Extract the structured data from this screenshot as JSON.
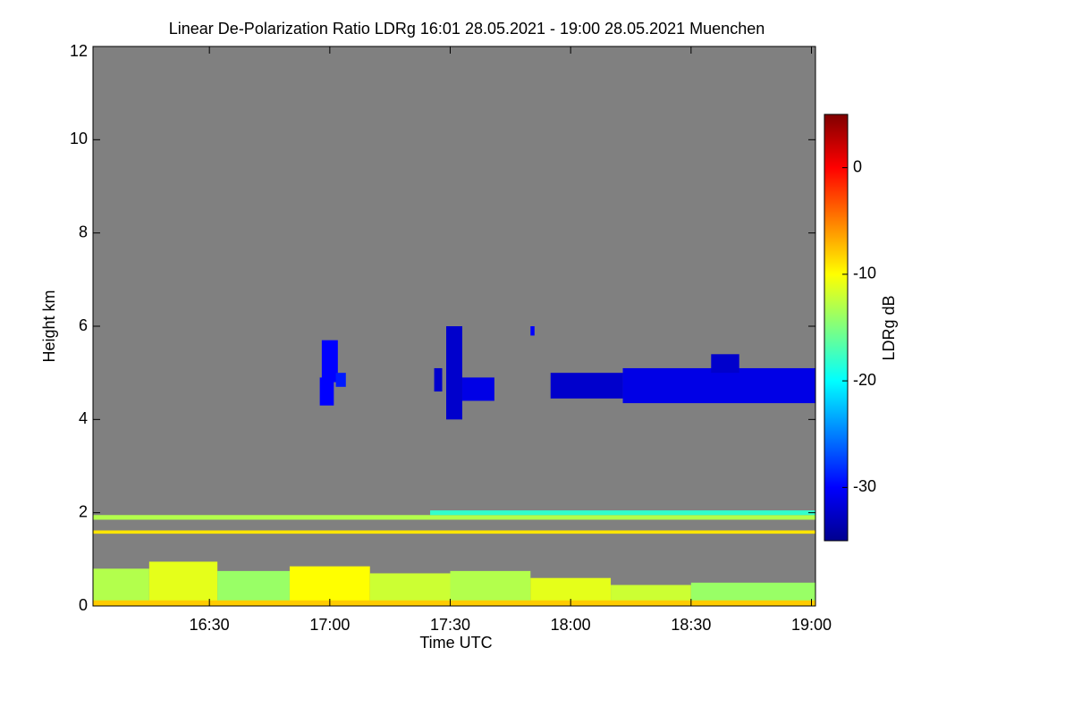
{
  "chart_data": {
    "type": "heatmap",
    "title": "Linear De-Polarization Ratio LDRg   16:01 28.05.2021 - 19:00 28.05.2021 Muenchen",
    "x_label": "Time UTC",
    "y_label": "Height km",
    "colorbar_label": "LDRg dB",
    "xlim": [
      961,
      1141
    ],
    "xticks": [
      {
        "value": 990,
        "label": "16:30"
      },
      {
        "value": 1020,
        "label": "17:00"
      },
      {
        "value": 1050,
        "label": "17:30"
      },
      {
        "value": 1080,
        "label": "18:00"
      },
      {
        "value": 1110,
        "label": "18:30"
      },
      {
        "value": 1140,
        "label": "19:00"
      }
    ],
    "ylim": [
      0,
      12
    ],
    "yticks": [
      0,
      2,
      4,
      6,
      8,
      10,
      12
    ],
    "clim": [
      -35,
      5
    ],
    "cticks": [
      0,
      -10,
      -20,
      -30
    ],
    "background": "#808080",
    "cells": [
      {
        "t": [
          961,
          975
        ],
        "h": [
          0,
          0.8
        ],
        "v": -13
      },
      {
        "t": [
          975,
          992
        ],
        "h": [
          0,
          0.95
        ],
        "v": -11
      },
      {
        "t": [
          992,
          1010
        ],
        "h": [
          0,
          0.75
        ],
        "v": -14
      },
      {
        "t": [
          1010,
          1030
        ],
        "h": [
          0,
          0.85
        ],
        "v": -10
      },
      {
        "t": [
          1030,
          1050
        ],
        "h": [
          0,
          0.7
        ],
        "v": -12
      },
      {
        "t": [
          1050,
          1070
        ],
        "h": [
          0,
          0.75
        ],
        "v": -13
      },
      {
        "t": [
          1070,
          1090
        ],
        "h": [
          0,
          0.6
        ],
        "v": -11
      },
      {
        "t": [
          1090,
          1110
        ],
        "h": [
          0,
          0.45
        ],
        "v": -12
      },
      {
        "t": [
          1110,
          1141
        ],
        "h": [
          0,
          0.5
        ],
        "v": -14
      },
      {
        "t": [
          961,
          1141
        ],
        "h": [
          0,
          0.12
        ],
        "v": -8
      },
      {
        "t": [
          961,
          1141
        ],
        "h": [
          1.85,
          1.95
        ],
        "v": -13
      },
      {
        "t": [
          1045,
          1141
        ],
        "h": [
          1.95,
          2.05
        ],
        "v": -18
      },
      {
        "t": [
          961,
          1141
        ],
        "h": [
          1.55,
          1.62
        ],
        "v": -9
      },
      {
        "t": [
          1018,
          1022
        ],
        "h": [
          4.8,
          5.7
        ],
        "v": -30
      },
      {
        "t": [
          1017.5,
          1021
        ],
        "h": [
          4.3,
          4.9
        ],
        "v": -30
      },
      {
        "t": [
          1021.5,
          1024
        ],
        "h": [
          4.7,
          5.0
        ],
        "v": -29
      },
      {
        "t": [
          1046,
          1048
        ],
        "h": [
          4.6,
          5.1
        ],
        "v": -32
      },
      {
        "t": [
          1049,
          1053
        ],
        "h": [
          4.0,
          6.0
        ],
        "v": -32
      },
      {
        "t": [
          1053,
          1061
        ],
        "h": [
          4.4,
          4.9
        ],
        "v": -31
      },
      {
        "t": [
          1070,
          1071
        ],
        "h": [
          5.8,
          6.0
        ],
        "v": -30
      },
      {
        "t": [
          1075,
          1093
        ],
        "h": [
          4.45,
          5.0
        ],
        "v": -32
      },
      {
        "t": [
          1093,
          1141
        ],
        "h": [
          4.35,
          5.1
        ],
        "v": -31
      },
      {
        "t": [
          1115,
          1122
        ],
        "h": [
          5.0,
          5.4
        ],
        "v": -32
      }
    ]
  }
}
